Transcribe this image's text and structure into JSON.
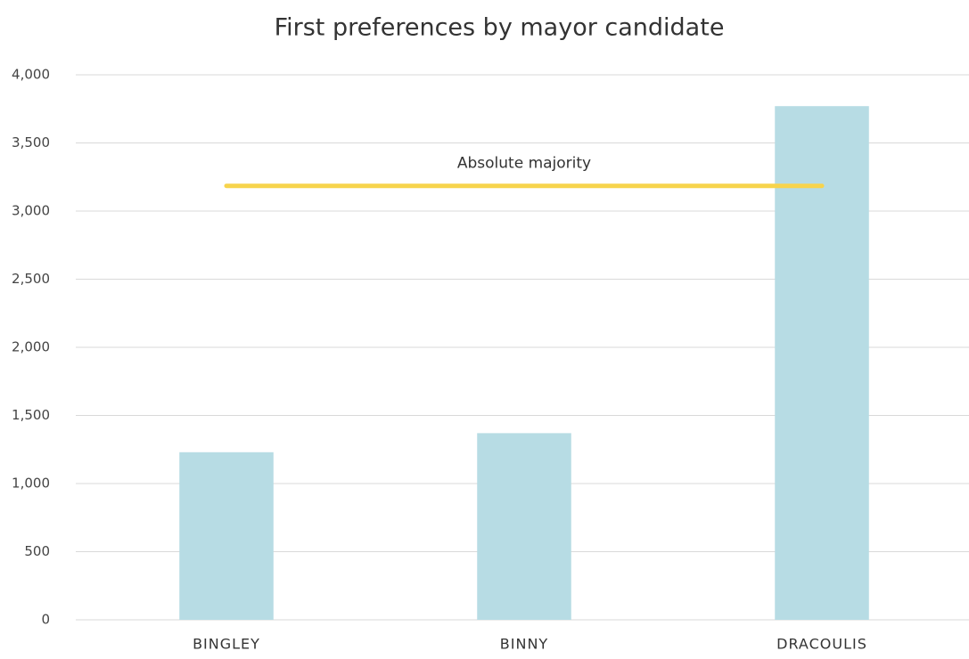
{
  "chart_data": {
    "type": "bar",
    "title": "First preferences by mayor candidate",
    "categories": [
      "BINGLEY",
      "BINNY",
      "DRACOULIS"
    ],
    "values": [
      1230,
      1370,
      3770
    ],
    "color": "#b7dce4",
    "ylim": [
      0,
      4000
    ],
    "yticks": [
      0,
      500,
      {
        "value": 1000,
        "label": "1,000"
      },
      {
        "value": 1500,
        "label": "1,500"
      },
      {
        "value": 2000,
        "label": "2,000"
      },
      {
        "value": 2500,
        "label": "2,500"
      },
      {
        "value": 3000,
        "label": "3,000"
      },
      {
        "value": 3500,
        "label": "3,500"
      },
      {
        "value": 4000,
        "label": "4,000"
      }
    ],
    "grid": true,
    "reference_line": {
      "label": "Absolute majority",
      "value": 3185,
      "color": "#f7d44c"
    }
  }
}
